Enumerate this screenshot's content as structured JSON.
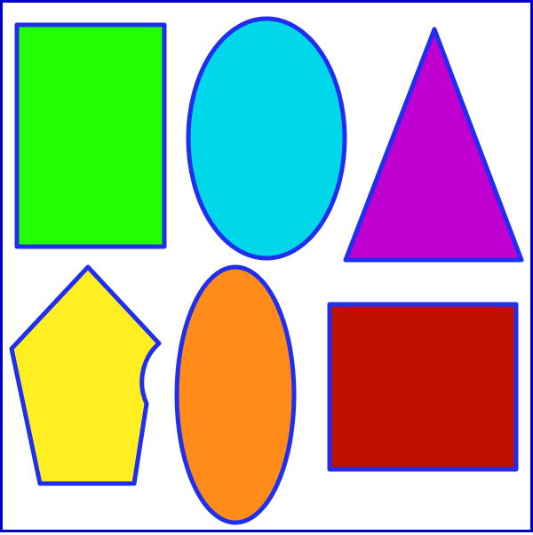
{
  "canvas": {
    "background": "#ffffff",
    "border_color": "#0000c8"
  },
  "shapes": [
    {
      "name": "green-rectangle",
      "type": "rectangle",
      "fill": "#22ff00",
      "stroke": "#1f2ef0"
    },
    {
      "name": "cyan-ellipse",
      "type": "ellipse",
      "fill": "#00d8ea",
      "stroke": "#1f2ef0"
    },
    {
      "name": "magenta-triangle",
      "type": "triangle",
      "fill": "#c000d0",
      "stroke": "#1f2ef0"
    },
    {
      "name": "yellow-pentagon",
      "type": "pentagon",
      "fill": "#ffee22",
      "stroke": "#1f2ef0"
    },
    {
      "name": "orange-ellipse",
      "type": "ellipse",
      "fill": "#ff8c1a",
      "stroke": "#1f2ef0"
    },
    {
      "name": "red-rectangle",
      "type": "rectangle",
      "fill": "#c00f00",
      "stroke": "#1f2ef0"
    }
  ]
}
